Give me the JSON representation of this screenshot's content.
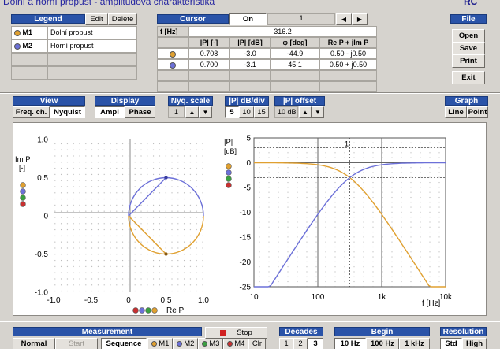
{
  "window": {
    "title": "Dolní a horní propust - amplitudová charakteristika",
    "logo": "RC"
  },
  "colors": {
    "m1": "#e0a030",
    "m2": "#6c70d8",
    "m3": "#3aa040",
    "m4": "#c83030",
    "header": "#2a53a8"
  },
  "legend": {
    "header": "Legend",
    "edit": "Edit",
    "delete": "Delete",
    "rows": [
      {
        "id": "M1",
        "name": "Dolní propust"
      },
      {
        "id": "M2",
        "name": "Horní propust"
      }
    ]
  },
  "cursor": {
    "header": "Cursor",
    "state": "On",
    "index": "1",
    "prev": "◀",
    "next": "▶",
    "freq_label": "f [Hz]",
    "freq_value": "316.2",
    "columns": [
      "|P| [-]",
      "|P| [dB]",
      "φ [deg]",
      "Re P + jIm P"
    ],
    "rows": [
      [
        "0.708",
        "-3.0",
        "-44.9",
        "0.50 - j0.50"
      ],
      [
        "0.700",
        "-3.1",
        "45.1",
        "0.50 + j0.50"
      ]
    ]
  },
  "file": {
    "header": "File",
    "open": "Open",
    "save": "Save",
    "print": "Print",
    "exit": "Exit"
  },
  "view": {
    "header": "View",
    "freq": "Freq. ch.",
    "nyquist": "Nyquist"
  },
  "display": {
    "header": "Display",
    "ampl": "Ampl",
    "phase": "Phase"
  },
  "nyq_scale": {
    "header": "Nyq. scale",
    "value": "1",
    "up": "▲",
    "down": "▼"
  },
  "db_div": {
    "header": "|P| dB/div",
    "options": [
      "5",
      "10",
      "15"
    ]
  },
  "offset": {
    "header": "|P| offset",
    "value": "10 dB",
    "up": "▲",
    "down": "▼"
  },
  "graph": {
    "header": "Graph",
    "line": "Line",
    "point": "Point"
  },
  "nyquist_plot": {
    "ylabel": "Im P",
    "yunit": "[-]",
    "xlabel": "Re P",
    "xticks": [
      "-1.0",
      "-0.5",
      "0",
      "0.5",
      "1.0"
    ],
    "yticks": [
      "1.0",
      "0.5",
      "0",
      "-0.5",
      "-1.0"
    ]
  },
  "bode_plot": {
    "ylabel": "|P|",
    "yunit": "[dB]",
    "xlabel": "f [Hz]",
    "cursor_label": "1",
    "xticks": [
      "10",
      "100",
      "1k",
      "10k"
    ],
    "yticks": [
      "5",
      "0",
      "-5",
      "-10",
      "-15",
      "-20",
      "-25"
    ]
  },
  "chart_data": [
    {
      "type": "scatter",
      "xlim": [
        -1.0,
        1.0
      ],
      "ylim": [
        -1.0,
        1.0
      ],
      "series": [
        {
          "x": [
            0,
            0.5,
            1
          ],
          "y": [
            0,
            -0.5,
            0
          ]
        },
        {
          "x": [
            0,
            0.5,
            1
          ],
          "y": [
            0,
            0.5,
            0
          ]
        }
      ]
    },
    {
      "type": "line",
      "xscale": "log",
      "xlim": [
        10,
        10000
      ],
      "ylim": [
        -25,
        5
      ],
      "series": [
        {
          "x": [
            10,
            100,
            316.2,
            1000,
            10000
          ],
          "y": [
            0,
            -0.4,
            -3.0,
            -10.4,
            -30.0
          ]
        },
        {
          "x": [
            10,
            100,
            316.2,
            1000,
            10000
          ],
          "y": [
            -30.0,
            -10.4,
            -3.1,
            -0.4,
            0
          ]
        }
      ]
    }
  ],
  "measurement": {
    "header": "Measurement",
    "normal": "Normal",
    "start": "Start",
    "sequence": "Sequence",
    "m1": "M1",
    "m2": "M2",
    "m3": "M3",
    "m4": "M4",
    "clr": "Clr",
    "stop": "Stop"
  },
  "decades": {
    "header": "Decades",
    "options": [
      "1",
      "2",
      "3"
    ]
  },
  "begin": {
    "header": "Begin",
    "options": [
      "10 Hz",
      "100 Hz",
      "1 kHz"
    ]
  },
  "resolution": {
    "header": "Resolution",
    "std": "Std",
    "high": "High"
  }
}
